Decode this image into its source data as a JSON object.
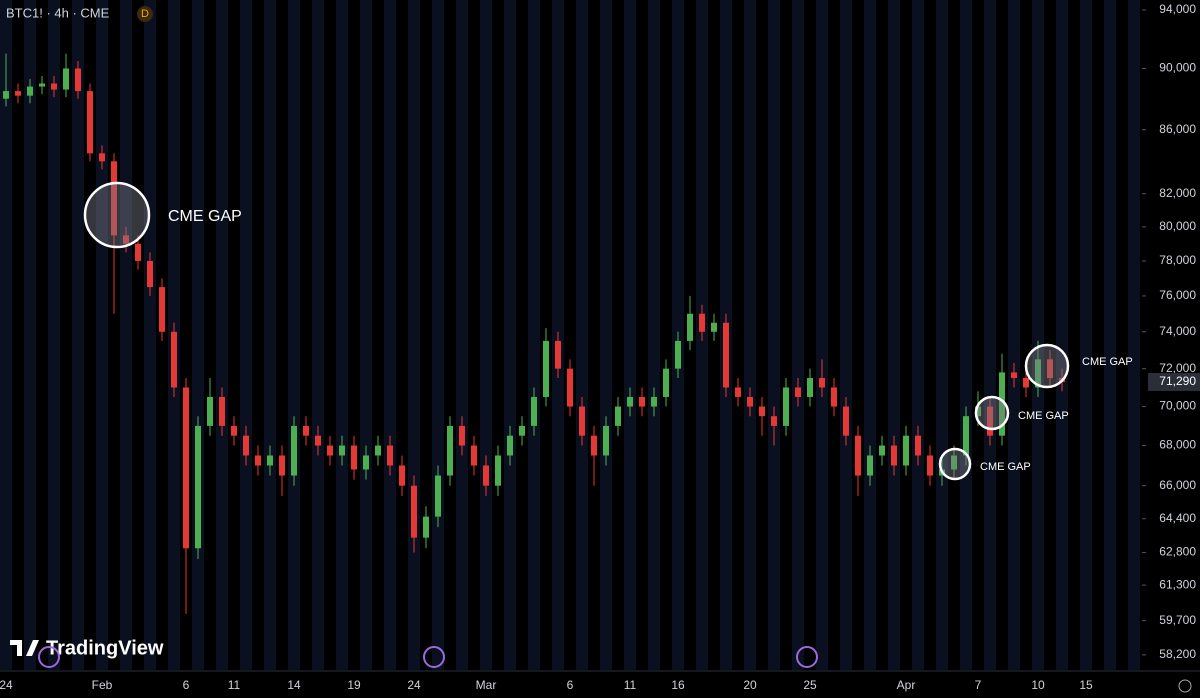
{
  "chart_data": {
    "type": "candlestick",
    "title": "BTC1! · 4h · CME",
    "badge": "D",
    "logo": "TradingView",
    "log_scale": true,
    "up_color": "#4caf50",
    "down_color": "#e53935",
    "ylim": [
      57550,
      94700
    ],
    "yticks": [
      {
        "value": 94000,
        "label": "94,000"
      },
      {
        "value": 90000,
        "label": "90,000"
      },
      {
        "value": 86000,
        "label": "86,000"
      },
      {
        "value": 82000,
        "label": "82,000"
      },
      {
        "value": 80000,
        "label": "80,000"
      },
      {
        "value": 78000,
        "label": "78,000"
      },
      {
        "value": 76000,
        "label": "76,000"
      },
      {
        "value": 74000,
        "label": "74,000"
      },
      {
        "value": 72000,
        "label": "72,000"
      },
      {
        "value": 70000,
        "label": "70,000"
      },
      {
        "value": 68000,
        "label": "68,000"
      },
      {
        "value": 66000,
        "label": "66,000"
      },
      {
        "value": 64400,
        "label": "64,400"
      },
      {
        "value": 62800,
        "label": "62,800"
      },
      {
        "value": 61300,
        "label": "61,300"
      },
      {
        "value": 59700,
        "label": "59,700"
      },
      {
        "value": 58200,
        "label": "58,200"
      }
    ],
    "last_price": {
      "value": 71290,
      "label": "71,290"
    },
    "categories": [
      "24",
      null,
      null,
      null,
      null,
      null,
      null,
      null,
      "Feb",
      null,
      null,
      null,
      null,
      null,
      null,
      "6",
      null,
      null,
      null,
      "11",
      null,
      null,
      null,
      null,
      "14",
      null,
      null,
      null,
      null,
      "19",
      null,
      null,
      null,
      null,
      "24",
      null,
      null,
      null,
      null,
      null,
      "Mar",
      null,
      null,
      null,
      null,
      null,
      null,
      "6",
      null,
      null,
      null,
      null,
      "11",
      null,
      null,
      null,
      "16",
      null,
      null,
      null,
      null,
      null,
      "20",
      null,
      null,
      null,
      null,
      "25",
      null,
      null,
      null,
      null,
      null,
      null,
      null,
      "Apr",
      null,
      null,
      null,
      null,
      null,
      "7",
      null,
      null,
      null,
      null,
      "10",
      null,
      null,
      null,
      "15"
    ],
    "open": [
      88000,
      88500,
      88200,
      88800,
      89000,
      88600,
      90000,
      88500,
      84500,
      84000,
      79500,
      79000,
      78000,
      76500,
      74000,
      71000,
      63000,
      69000,
      70500,
      69000,
      68500,
      67500,
      67000,
      67500,
      66500,
      69000,
      68500,
      68000,
      67500,
      68000,
      66800,
      67500,
      68000,
      67000,
      66000,
      63500,
      64500,
      66500,
      69000,
      68000,
      67000,
      66000,
      67500,
      68500,
      69000,
      70500,
      73500,
      72000,
      70000,
      68500,
      67500,
      69000,
      70000,
      70500,
      70000,
      70500,
      72000,
      73500,
      75000,
      74000,
      74500,
      71000,
      70500,
      70000,
      69500,
      69000,
      71000,
      70500,
      71500,
      71000,
      70000,
      68500,
      66500,
      67500,
      68000,
      67000,
      68500,
      67500,
      66500,
      66800,
      67500,
      69500,
      70000,
      68500,
      71800,
      71500,
      71000,
      72500,
      71500,
      null,
      null
    ],
    "high": [
      91000,
      89000,
      89300,
      89500,
      89500,
      91000,
      90500,
      89000,
      85000,
      84500,
      80000,
      79500,
      78500,
      77000,
      74500,
      71500,
      69500,
      71500,
      71000,
      69500,
      69000,
      68000,
      68000,
      68000,
      69500,
      69500,
      69000,
      68500,
      68500,
      68500,
      68000,
      68500,
      68500,
      67500,
      66500,
      65000,
      67000,
      69500,
      69500,
      68500,
      67500,
      68000,
      69000,
      69500,
      71000,
      74200,
      74000,
      72500,
      70500,
      69000,
      69500,
      70500,
      71000,
      71000,
      71000,
      72500,
      74000,
      76000,
      75500,
      75000,
      75000,
      71500,
      71000,
      70500,
      70000,
      71500,
      71500,
      72000,
      72500,
      71500,
      70500,
      69000,
      68000,
      68500,
      68500,
      69000,
      69000,
      68000,
      67300,
      68000,
      70000,
      70800,
      70500,
      72800,
      72300,
      72000,
      73500,
      73000,
      72000,
      null,
      null
    ],
    "low": [
      87500,
      87700,
      87700,
      88300,
      88100,
      88100,
      88000,
      84000,
      83500,
      75000,
      78500,
      77500,
      76000,
      73500,
      70500,
      60000,
      62500,
      68500,
      68500,
      68000,
      67000,
      66500,
      66500,
      65500,
      66000,
      68000,
      67500,
      67000,
      67000,
      66300,
      66300,
      67000,
      66500,
      65500,
      62800,
      63000,
      64000,
      66000,
      67500,
      66500,
      65500,
      65500,
      67000,
      68000,
      68500,
      70000,
      71500,
      69500,
      68000,
      66000,
      67000,
      68500,
      69500,
      69500,
      69500,
      70000,
      71500,
      73000,
      73500,
      73500,
      70500,
      70000,
      69500,
      68500,
      68000,
      68500,
      70000,
      70000,
      70500,
      69500,
      68000,
      65500,
      66000,
      67000,
      66500,
      66500,
      67000,
      66000,
      66000,
      66300,
      67000,
      69000,
      68000,
      68000,
      71000,
      70500,
      70500,
      71000,
      70800,
      null,
      null
    ],
    "close": [
      88500,
      88200,
      88800,
      89000,
      88600,
      90000,
      88500,
      84500,
      84000,
      79500,
      79000,
      78000,
      76500,
      74000,
      71000,
      63000,
      69000,
      70500,
      69000,
      68500,
      67500,
      67000,
      67500,
      66500,
      69000,
      68500,
      68000,
      67500,
      68000,
      66800,
      67500,
      68000,
      67000,
      66000,
      63500,
      64500,
      66500,
      69000,
      68000,
      67000,
      66000,
      67500,
      68500,
      69000,
      70500,
      73500,
      72000,
      70000,
      68500,
      67500,
      69000,
      70000,
      70500,
      70000,
      70500,
      72000,
      73500,
      75000,
      74000,
      74500,
      71000,
      70500,
      70000,
      69500,
      69000,
      71000,
      70500,
      71500,
      71000,
      70000,
      68500,
      66500,
      67500,
      68000,
      67000,
      68500,
      67500,
      66500,
      66800,
      67500,
      69500,
      70000,
      68500,
      71800,
      71500,
      71000,
      72500,
      71500,
      71290,
      null,
      null
    ],
    "annotations": [
      "CME GAP",
      "CME GAP",
      "CME GAP",
      "CME GAP"
    ]
  }
}
